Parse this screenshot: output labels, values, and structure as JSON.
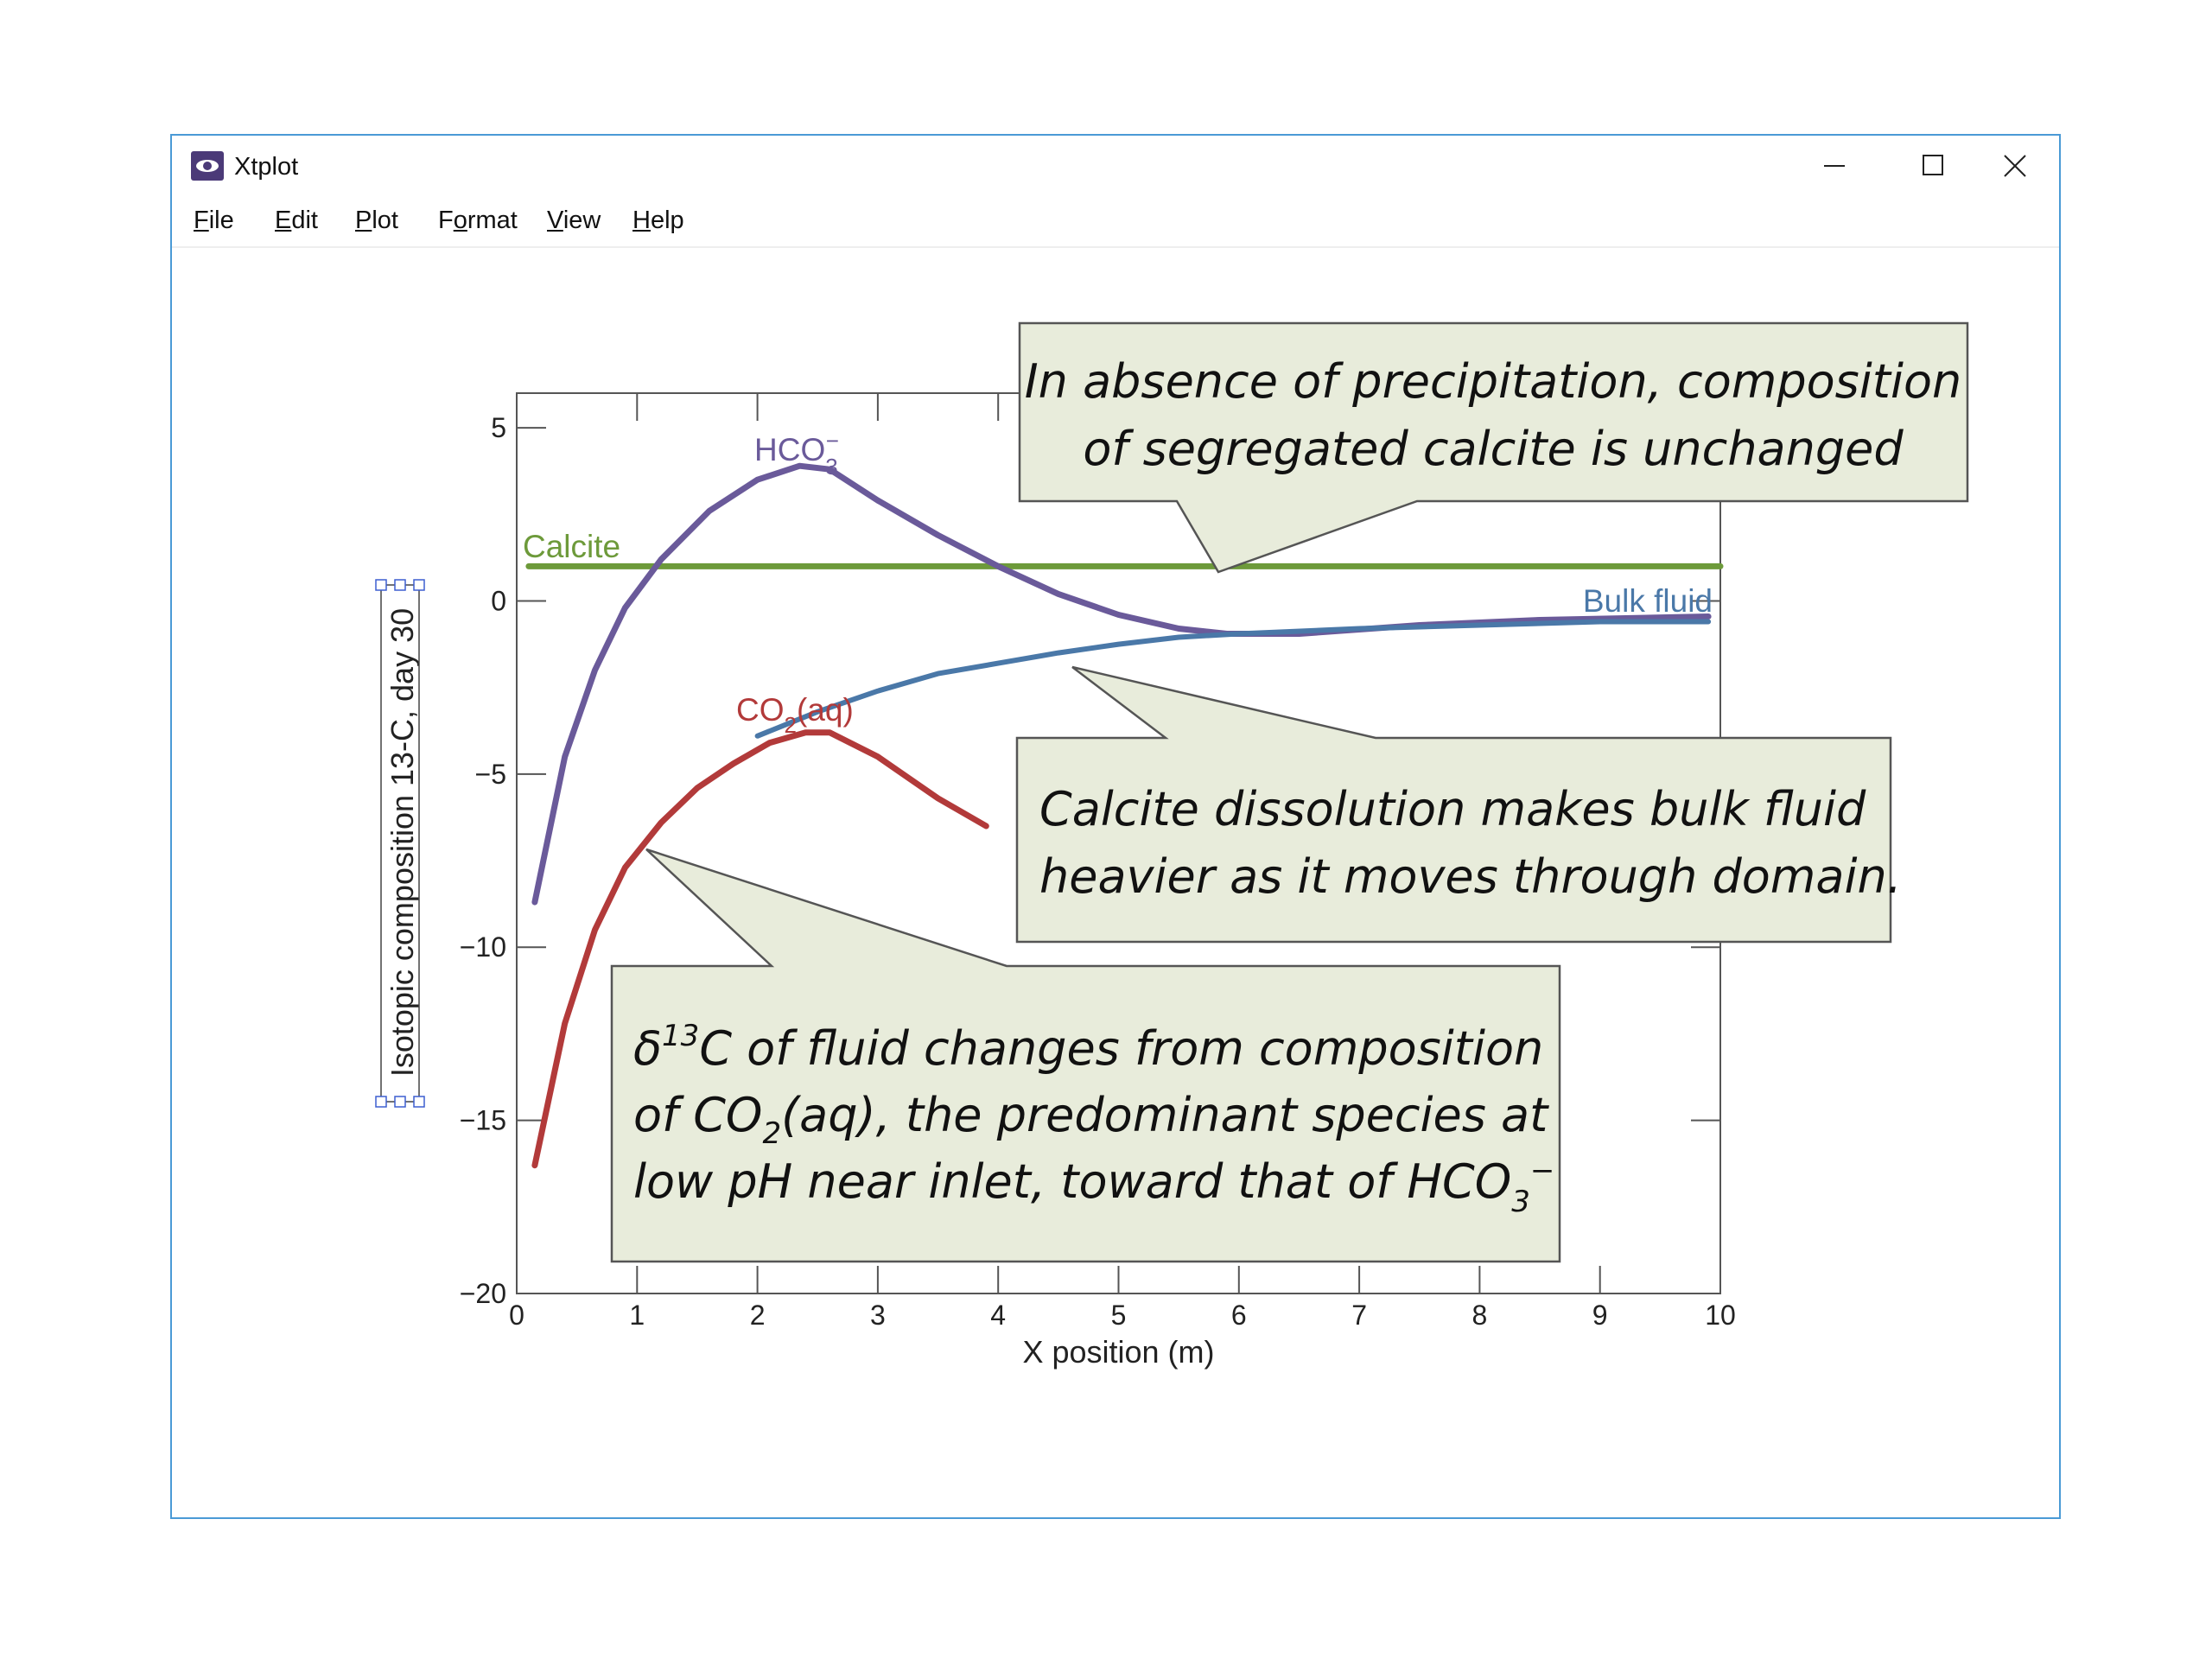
{
  "window": {
    "title": "Xtplot",
    "controls": {
      "minimize": "minimize",
      "maximize": "maximize",
      "close": "close"
    }
  },
  "menu": [
    {
      "label": "File",
      "accel": "F",
      "rest": "ile"
    },
    {
      "label": "Edit",
      "accel": "E",
      "rest": "dit"
    },
    {
      "label": "Plot",
      "accel": "P",
      "rest": "lot"
    },
    {
      "label": "Format",
      "accel": "o",
      "pre": "F",
      "rest": "rmat"
    },
    {
      "label": "View",
      "accel": "V",
      "rest": "iew"
    },
    {
      "label": "Help",
      "accel": "H",
      "rest": "elp"
    }
  ],
  "chart_data": {
    "type": "line",
    "xlabel": "X position (m)",
    "ylabel": "Isotopic composition 13-C, day 30",
    "xlim": [
      0,
      10
    ],
    "ylim": [
      -20,
      6
    ],
    "xticks": [
      "0",
      "1",
      "2",
      "3",
      "4",
      "5",
      "6",
      "7",
      "8",
      "9",
      "10"
    ],
    "yticks": [
      {
        "value": 5,
        "label": "5"
      },
      {
        "value": 0,
        "label": "0"
      },
      {
        "value": -5,
        "label": "−5"
      },
      {
        "value": -10,
        "label": "−10"
      },
      {
        "value": -15,
        "label": "−15"
      },
      {
        "value": -20,
        "label": "−20"
      }
    ],
    "series": [
      {
        "name": "Calcite",
        "color": "#6d9a3a",
        "x": [
          0.1,
          10
        ],
        "y": [
          1.0,
          1.0
        ]
      },
      {
        "name": "HCO3-",
        "label_main": "HCO",
        "label_sub": "3",
        "label_sup": "−",
        "color": "#6a5a9a",
        "x": [
          0.15,
          0.4,
          0.65,
          0.9,
          1.2,
          1.6,
          2.0,
          2.35,
          2.6,
          3.0,
          3.5,
          4.0,
          4.5,
          5.0,
          5.5,
          5.9,
          6.5,
          7.5,
          8.5,
          9.9
        ],
        "y": [
          -8.7,
          -4.5,
          -2.0,
          -0.2,
          1.2,
          2.6,
          3.5,
          3.9,
          3.8,
          2.9,
          1.9,
          1.0,
          0.2,
          -0.4,
          -0.8,
          -0.95,
          -0.95,
          -0.7,
          -0.55,
          -0.45
        ]
      },
      {
        "name": "Bulk fluid",
        "color": "#4a78a8",
        "x": [
          2.0,
          2.5,
          3.0,
          3.5,
          4.0,
          4.5,
          5.0,
          5.5,
          6.0,
          7.0,
          8.0,
          9.0,
          9.9
        ],
        "y": [
          -3.9,
          -3.2,
          -2.6,
          -2.1,
          -1.8,
          -1.5,
          -1.25,
          -1.05,
          -0.95,
          -0.8,
          -0.7,
          -0.6,
          -0.6
        ]
      },
      {
        "name": "CO2(aq)",
        "label_main": "CO",
        "label_sub": "2",
        "label_tail": "(aq)",
        "color": "#b23a3a",
        "x": [
          0.15,
          0.4,
          0.65,
          0.9,
          1.2,
          1.5,
          1.8,
          2.1,
          2.4,
          2.6,
          3.0,
          3.5,
          3.9
        ],
        "y": [
          -16.3,
          -12.2,
          -9.5,
          -7.7,
          -6.4,
          -5.4,
          -4.7,
          -4.1,
          -3.8,
          -3.8,
          -4.5,
          -5.7,
          -6.5
        ]
      }
    ],
    "annotations": [
      {
        "id": "note-precipitation",
        "lines": [
          "In absence of precipitation, composition",
          "of segregated calcite is unchanged"
        ]
      },
      {
        "id": "note-dissolution",
        "lines": [
          "Calcite dissolution makes bulk fluid",
          "heavier as it moves through domain."
        ]
      },
      {
        "id": "note-delta",
        "line1_pre": "δ",
        "line1_sup": "13",
        "line1_post": "C of fluid changes from composition",
        "line2_pre": "of CO",
        "line2_sub": "2",
        "line2_post": "(aq), the predominant species at",
        "line3_pre": "low pH near inlet, toward that of HCO",
        "line3_sub": "3",
        "line3_sup": "−"
      }
    ]
  },
  "colors": {
    "window_border": "#4a9ad6",
    "callout_fill": "#e8ecdb",
    "callout_stroke": "#555555",
    "axis": "#555555"
  }
}
